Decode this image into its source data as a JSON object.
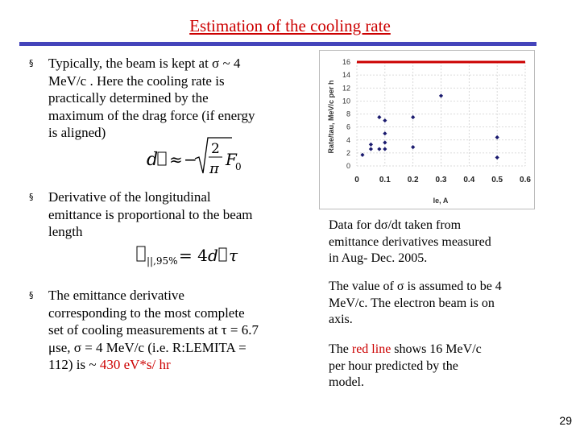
{
  "slide": {
    "title": "Estimation of the cooling rate",
    "page_number": "29",
    "bullet_glyph": "§"
  },
  "bullets": [
    {
      "lines": [
        "Typically, the beam is kept at σ ~ 4",
        "MeV/c . Here the cooling rate is",
        "practically determined by  the",
        "maximum of the drag force (if energy",
        "is aligned)"
      ]
    },
    {
      "lines": [
        "Derivative of the longitudinal",
        "emittance is proportional to the beam",
        "length"
      ]
    },
    {
      "lines": [
        "The emittance derivative",
        "corresponding to the most complete",
        "set of cooling measurements at τ = 6.7",
        "μse, σ = 4 MeV/c (i.e. R:LEMITA =",
        "112) is ~ "
      ],
      "highlight": "430 eV*s/ hr"
    }
  ],
  "side_notes": {
    "note1": [
      "Data for dσ/dt taken from",
      "emittance derivatives  measured",
      "in Aug- Dec. 2005."
    ],
    "note2": [
      "The value of σ is assumed to be 4",
      "MeV/c. The electron beam is on",
      "axis."
    ],
    "note3_prefix": "The ",
    "note3_red": "red line",
    "note3_rest": " shows 16 MeV/c",
    "note3_lines": [
      "per hour predicted by the",
      "model."
    ]
  },
  "chart_data": {
    "type": "scatter",
    "xlabel": "Ie, A",
    "ylabel": "Rate/tau, MeV/c per h",
    "xlim": [
      0,
      0.6
    ],
    "ylim": [
      0,
      16
    ],
    "x_ticks": [
      "0",
      "0.1",
      "0.2",
      "0.3",
      "0.4",
      "0.5",
      "0.6"
    ],
    "y_ticks": [
      "0",
      "2",
      "4",
      "6",
      "8",
      "10",
      "12",
      "14",
      "16"
    ],
    "grid": true,
    "points": [
      {
        "x": 0.02,
        "y": 1.7
      },
      {
        "x": 0.05,
        "y": 2.6
      },
      {
        "x": 0.05,
        "y": 3.3
      },
      {
        "x": 0.08,
        "y": 2.6
      },
      {
        "x": 0.08,
        "y": 7.5
      },
      {
        "x": 0.1,
        "y": 2.6
      },
      {
        "x": 0.1,
        "y": 3.6
      },
      {
        "x": 0.1,
        "y": 5.0
      },
      {
        "x": 0.1,
        "y": 7.0
      },
      {
        "x": 0.2,
        "y": 2.9
      },
      {
        "x": 0.2,
        "y": 7.5
      },
      {
        "x": 0.3,
        "y": 10.8
      },
      {
        "x": 0.5,
        "y": 1.3
      },
      {
        "x": 0.5,
        "y": 4.4
      }
    ],
    "reference_line": {
      "y": 16,
      "color": "#cc0000"
    },
    "point_color": "#1a1a6e"
  }
}
